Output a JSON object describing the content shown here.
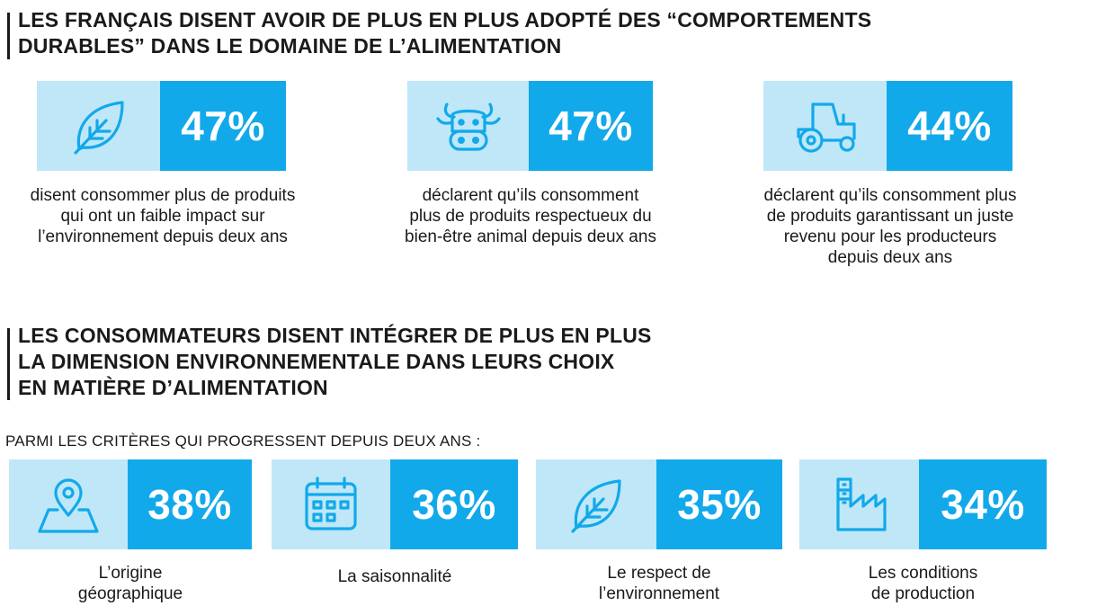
{
  "section1": {
    "title_lines": [
      "LES FRANÇAIS DISENT AVOIR DE PLUS EN PLUS ADOPTÉ DES “COMPORTEMENTS",
      "DURABLES” DANS LE DOMAINE DE L’ALIMENTATION"
    ],
    "stats": [
      {
        "icon": "leaf-icon",
        "value": "47%",
        "desc_lines": [
          "disent consommer plus de produits",
          "qui ont un faible impact sur",
          "l’environnement depuis deux ans"
        ]
      },
      {
        "icon": "cow-icon",
        "value": "47%",
        "desc_lines": [
          "déclarent qu’ils consomment",
          "plus de produits respectueux du",
          "bien-être animal depuis deux ans"
        ]
      },
      {
        "icon": "tractor-icon",
        "value": "44%",
        "desc_lines": [
          "déclarent qu’ils consomment plus",
          "de produits garantissant un juste",
          "revenu pour les producteurs",
          "depuis deux ans"
        ]
      }
    ]
  },
  "section2": {
    "title_lines": [
      "LES CONSOMMATEURS DISENT INTÉGRER DE PLUS EN PLUS",
      "LA DIMENSION ENVIRONNEMENTALE DANS LEURS CHOIX",
      "EN MATIÈRE D’ALIMENTATION"
    ],
    "criteria_label": "PARMI LES CRITÈRES QUI PROGRESSENT DEPUIS DEUX ANS :",
    "criteria": [
      {
        "icon": "map-pin-icon",
        "value": "38%",
        "label_lines": [
          "L’origine",
          "géographique"
        ]
      },
      {
        "icon": "calendar-icon",
        "value": "36%",
        "label_lines": [
          "La saisonnalité"
        ]
      },
      {
        "icon": "leaf-icon",
        "value": "35%",
        "label_lines": [
          "Le respect de",
          "l’environnement"
        ]
      },
      {
        "icon": "factory-icon",
        "value": "34%",
        "label_lines": [
          "Les conditions",
          "de production"
        ]
      }
    ]
  },
  "colors": {
    "accent": "#12a9ea",
    "light": "#bfe7f8",
    "text": "#1a1a1a"
  }
}
